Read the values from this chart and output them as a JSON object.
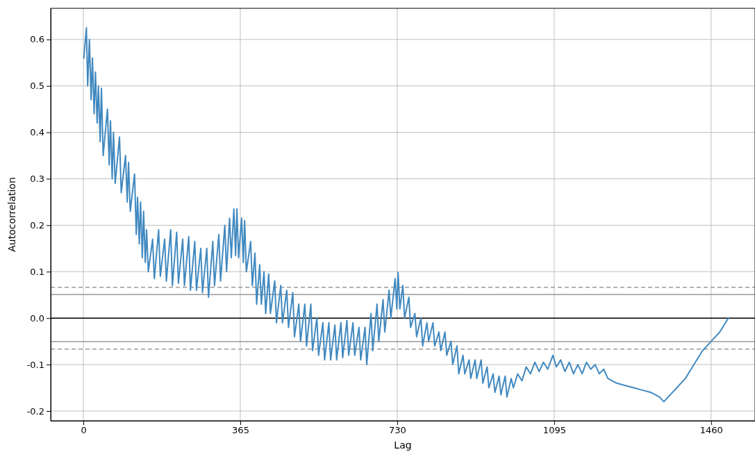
{
  "chart_data": {
    "type": "line",
    "xlabel": "Lag",
    "ylabel": "Autocorrelation",
    "xlim": [
      -76,
      1562
    ],
    "ylim": [
      -0.221,
      0.667
    ],
    "xticks": [
      0,
      365,
      730,
      1095,
      1460
    ],
    "yticks": [
      -0.2,
      -0.1,
      {
        "value": 0,
        "label": "0.0"
      },
      0.1,
      0.2,
      0.3,
      0.4,
      0.5,
      0.6
    ],
    "grid": true,
    "line_style": "solid",
    "ref_lines": [
      {
        "axis": "y",
        "value": 0.0665,
        "color": "#999999",
        "line_style": "dashed"
      },
      {
        "axis": "y",
        "value": 0.0506,
        "color": "#999999",
        "line_style": "solid"
      },
      {
        "axis": "y",
        "value": 0,
        "color": "#000000",
        "line_style": "solid"
      },
      {
        "axis": "y",
        "value": -0.0506,
        "color": "#999999",
        "line_style": "solid"
      },
      {
        "axis": "y",
        "value": -0.0665,
        "color": "#999999",
        "line_style": "dashed"
      }
    ],
    "series": [
      {
        "color": "#4189c0",
        "x": [
          1,
          7,
          10,
          14,
          18,
          21,
          25,
          28,
          32,
          35,
          39,
          42,
          46,
          56,
          60,
          63,
          67,
          70,
          74,
          84,
          88,
          98,
          102,
          105,
          109,
          119,
          123,
          126,
          130,
          133,
          137,
          140,
          144,
          147,
          151,
          161,
          165,
          175,
          179,
          189,
          193,
          203,
          207,
          217,
          221,
          231,
          235,
          245,
          249,
          259,
          263,
          273,
          277,
          287,
          291,
          301,
          305,
          315,
          319,
          329,
          333,
          340,
          344,
          350,
          354,
          357,
          361,
          368,
          372,
          375,
          379,
          389,
          393,
          399,
          403,
          410,
          414,
          420,
          424,
          431,
          435,
          445,
          449,
          459,
          463,
          473,
          477,
          487,
          491,
          501,
          505,
          515,
          519,
          529,
          533,
          543,
          547,
          557,
          561,
          571,
          575,
          585,
          589,
          599,
          603,
          613,
          617,
          627,
          631,
          641,
          645,
          655,
          659,
          669,
          673,
          683,
          687,
          697,
          701,
          711,
          715,
          725,
          729,
          732,
          736,
          743,
          747,
          757,
          761,
          771,
          775,
          785,
          789,
          799,
          803,
          813,
          817,
          827,
          831,
          841,
          845,
          855,
          859,
          869,
          873,
          883,
          887,
          897,
          901,
          911,
          915,
          925,
          929,
          939,
          943,
          953,
          957,
          967,
          971,
          981,
          985,
          995,
          1000,
          1010,
          1020,
          1030,
          1040,
          1050,
          1060,
          1070,
          1080,
          1092,
          1100,
          1110,
          1120,
          1130,
          1140,
          1150,
          1160,
          1170,
          1180,
          1190,
          1200,
          1210,
          1220,
          1240,
          1260,
          1280,
          1300,
          1320,
          1340,
          1350,
          1360,
          1380,
          1400,
          1420,
          1440,
          1460,
          1480,
          1500
        ],
        "values": [
          0.56,
          0.625,
          0.5,
          0.6,
          0.47,
          0.56,
          0.44,
          0.53,
          0.42,
          0.5,
          0.38,
          0.495,
          0.35,
          0.45,
          0.33,
          0.425,
          0.3,
          0.4,
          0.29,
          0.39,
          0.27,
          0.35,
          0.25,
          0.335,
          0.23,
          0.31,
          0.18,
          0.26,
          0.16,
          0.25,
          0.13,
          0.23,
          0.12,
          0.19,
          0.1,
          0.17,
          0.085,
          0.19,
          0.09,
          0.17,
          0.08,
          0.19,
          0.07,
          0.185,
          0.075,
          0.17,
          0.07,
          0.175,
          0.06,
          0.165,
          0.06,
          0.15,
          0.055,
          0.15,
          0.045,
          0.165,
          0.07,
          0.18,
          0.08,
          0.2,
          0.1,
          0.215,
          0.13,
          0.235,
          0.135,
          0.235,
          0.13,
          0.215,
          0.12,
          0.21,
          0.1,
          0.165,
          0.07,
          0.14,
          0.03,
          0.115,
          0.03,
          0.1,
          0.01,
          0.095,
          0.01,
          0.08,
          -0.01,
          0.07,
          -0.01,
          0.06,
          -0.02,
          0.055,
          -0.04,
          0.03,
          -0.05,
          0.03,
          -0.06,
          0.03,
          -0.07,
          0.0,
          -0.08,
          -0.01,
          -0.09,
          -0.01,
          -0.09,
          -0.015,
          -0.09,
          -0.01,
          -0.085,
          -0.005,
          -0.08,
          -0.01,
          -0.08,
          -0.02,
          -0.09,
          -0.02,
          -0.1,
          0.01,
          -0.07,
          0.03,
          -0.05,
          0.04,
          -0.03,
          0.06,
          0.0,
          0.085,
          0.02,
          0.098,
          0.02,
          0.07,
          0.0,
          0.045,
          -0.02,
          0.01,
          -0.04,
          0.0,
          -0.06,
          -0.01,
          -0.05,
          -0.01,
          -0.06,
          -0.03,
          -0.07,
          -0.03,
          -0.08,
          -0.05,
          -0.1,
          -0.06,
          -0.12,
          -0.08,
          -0.12,
          -0.09,
          -0.13,
          -0.09,
          -0.13,
          -0.09,
          -0.14,
          -0.105,
          -0.15,
          -0.12,
          -0.16,
          -0.125,
          -0.165,
          -0.125,
          -0.17,
          -0.13,
          -0.15,
          -0.12,
          -0.135,
          -0.105,
          -0.12,
          -0.095,
          -0.115,
          -0.095,
          -0.11,
          -0.08,
          -0.105,
          -0.09,
          -0.115,
          -0.095,
          -0.12,
          -0.1,
          -0.12,
          -0.095,
          -0.11,
          -0.1,
          -0.12,
          -0.11,
          -0.13,
          -0.14,
          -0.145,
          -0.15,
          -0.155,
          -0.16,
          -0.17,
          -0.18,
          -0.17,
          -0.15,
          -0.13,
          -0.1,
          -0.07,
          -0.05,
          -0.03,
          0.0
        ]
      }
    ]
  }
}
